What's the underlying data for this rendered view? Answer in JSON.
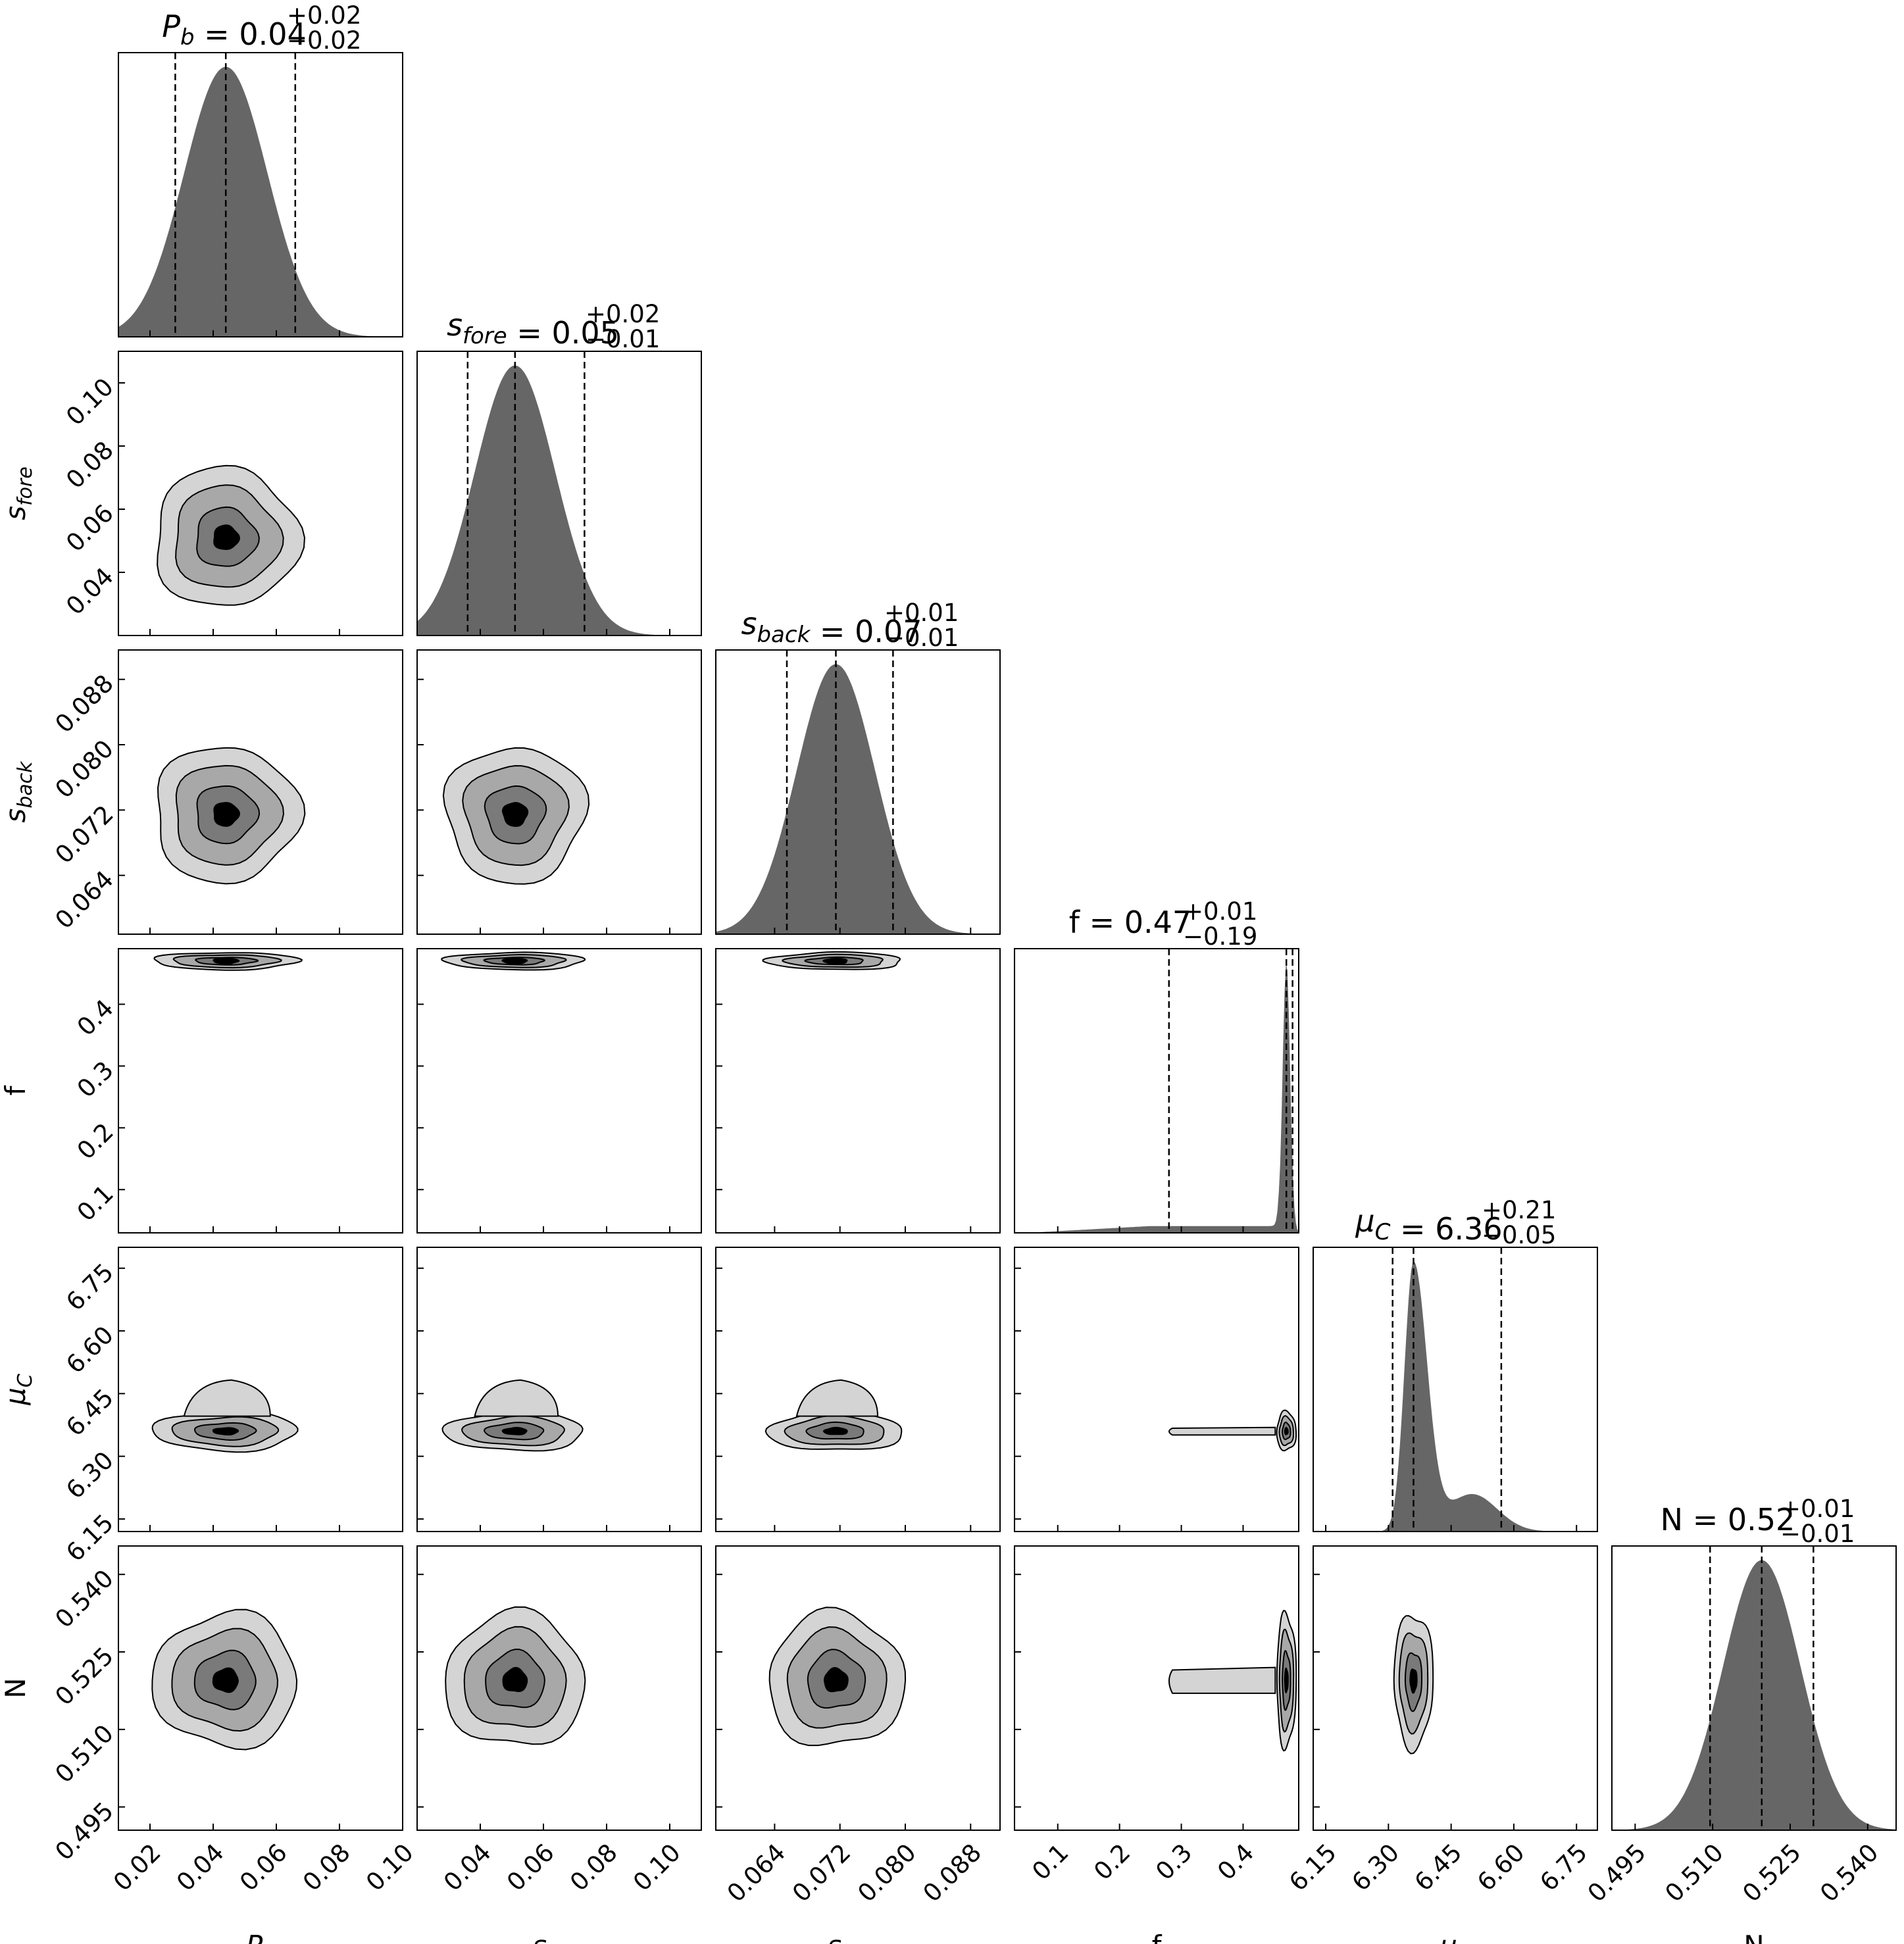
{
  "chart_data": {
    "type": "corner",
    "parameters": [
      {
        "key": "Pb",
        "label": "P",
        "sub": "b",
        "italic": true,
        "range": [
          0.01,
          0.1
        ],
        "ticks": [
          "0.02",
          "0.04",
          "0.06",
          "0.08",
          "0.10"
        ],
        "tick_values": [
          0.02,
          0.04,
          0.06,
          0.08,
          0.1
        ],
        "title": {
          "main": "P",
          "sub": "b",
          "value": " = 0.04",
          "plus": "+0.02",
          "minus": "−0.02"
        },
        "median": 0.044,
        "lower": 0.028,
        "upper": 0.066,
        "sigma": 0.0088
      },
      {
        "key": "sfore",
        "label": "s",
        "sub": "fore",
        "italic": true,
        "range": [
          0.02,
          0.11
        ],
        "ticks": [
          "0.04",
          "0.06",
          "0.08",
          "0.10"
        ],
        "tick_values": [
          0.04,
          0.06,
          0.08,
          0.1
        ],
        "title": {
          "main": "s",
          "sub": "fore",
          "value": " = 0.05",
          "plus": "+0.02",
          "minus": "−0.01"
        },
        "median": 0.051,
        "lower": 0.036,
        "upper": 0.073,
        "sigma": 0.0085
      },
      {
        "key": "sback",
        "label": "s",
        "sub": "back",
        "italic": true,
        "range": [
          0.0568,
          0.0916
        ],
        "ticks": [
          "0.064",
          "0.072",
          "0.080",
          "0.088"
        ],
        "tick_values": [
          0.064,
          0.072,
          0.08,
          0.088
        ],
        "title": {
          "main": "s",
          "sub": "back",
          "value": " = 0.07",
          "plus": "+0.01",
          "minus": "−0.01"
        },
        "median": 0.0715,
        "lower": 0.0655,
        "upper": 0.0785,
        "sigma": 0.0032
      },
      {
        "key": "f",
        "label": "f",
        "sub": "",
        "italic": false,
        "range": [
          0.03,
          0.49
        ],
        "ticks": [
          "0.1",
          "0.2",
          "0.3",
          "0.4"
        ],
        "tick_values": [
          0.1,
          0.2,
          0.3,
          0.4
        ],
        "title": {
          "main": "f",
          "sub": "",
          "value": " = 0.47",
          "plus": "+0.01",
          "minus": "−0.19"
        },
        "median": 0.47,
        "lower": 0.28,
        "upper": 0.48,
        "sigma": 0.006
      },
      {
        "key": "muC",
        "label": "μ",
        "sub": "C",
        "italic": true,
        "range": [
          6.12,
          6.8
        ],
        "ticks": [
          "6.15",
          "6.30",
          "6.45",
          "6.60",
          "6.75"
        ],
        "tick_values": [
          6.15,
          6.3,
          6.45,
          6.6,
          6.75
        ],
        "title": {
          "main": "μ",
          "sub": "C",
          "value": " = 6.36",
          "plus": "+0.21",
          "minus": "−0.05"
        },
        "median": 6.36,
        "lower": 6.31,
        "upper": 6.57,
        "sigma": 0.018
      },
      {
        "key": "N",
        "label": "N",
        "sub": "",
        "italic": false,
        "range": [
          0.4905,
          0.5455
        ],
        "ticks": [
          "0.495",
          "0.510",
          "0.525",
          "0.540"
        ],
        "tick_values": [
          0.495,
          0.51,
          0.525,
          0.54
        ],
        "title": {
          "main": "N",
          "sub": "",
          "value": " = 0.52",
          "plus": "+0.01",
          "minus": "−0.01"
        },
        "median": 0.5195,
        "lower": 0.5095,
        "upper": 0.5295,
        "sigma": 0.005
      }
    ],
    "contour_colors": [
      "#d4d4d4",
      "#a8a8a8",
      "#7a7a7a",
      "#000000"
    ],
    "histogram_color": "#666666",
    "frame_color": "#000000",
    "dashed_lines": "16th, 50th and 84th percentiles"
  }
}
